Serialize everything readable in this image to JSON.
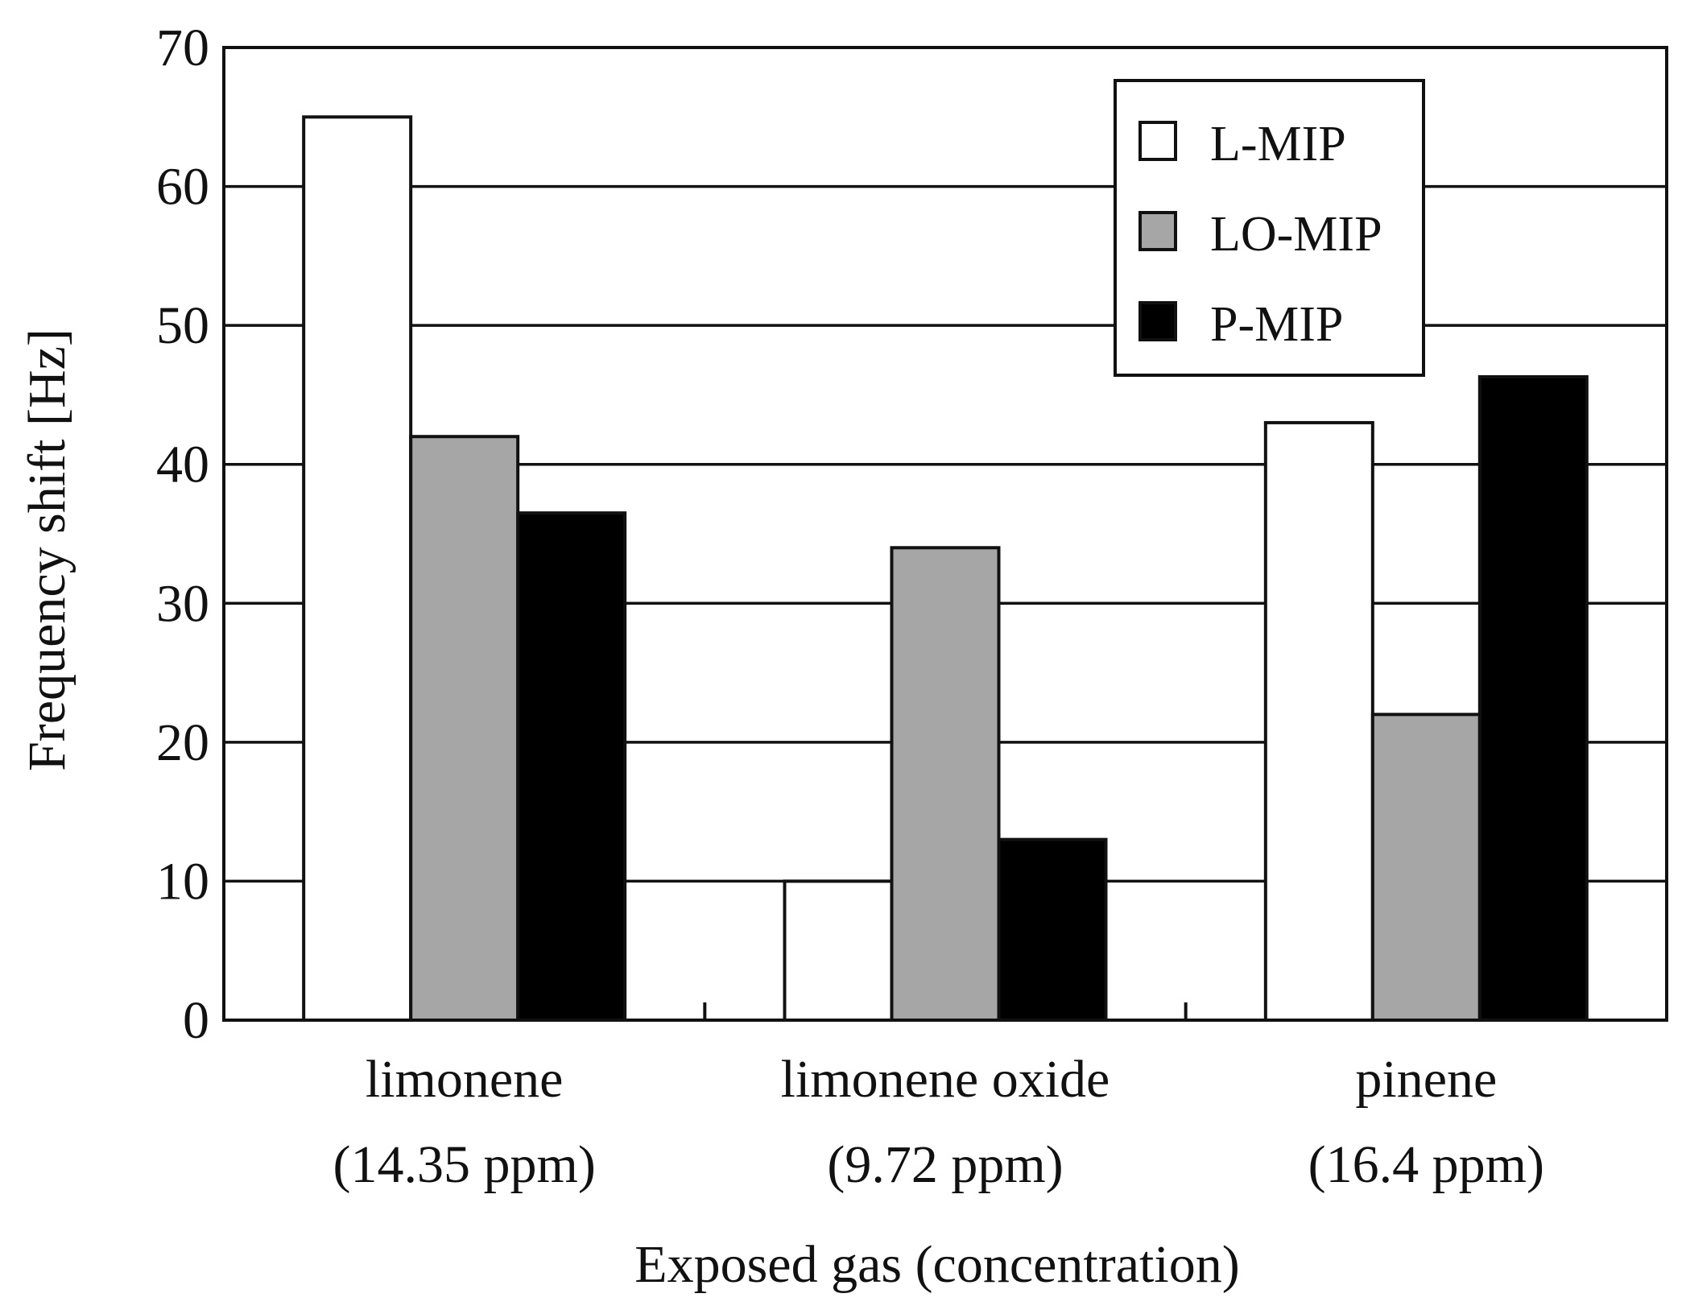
{
  "chart_data": {
    "type": "bar",
    "xlabel": "Exposed gas (concentration)",
    "ylabel": "Frequency shift [Hz]",
    "ylim": [
      0,
      70
    ],
    "yticks": [
      0,
      10,
      20,
      30,
      40,
      50,
      60,
      70
    ],
    "grid": "horizontal",
    "legend_position": "top-right",
    "categories": [
      {
        "line1": "limonene",
        "line2": "(14.35 ppm)"
      },
      {
        "line1": "limonene oxide",
        "line2": "(9.72 ppm)"
      },
      {
        "line1": "pinene",
        "line2": "(16.4 ppm)"
      }
    ],
    "series": [
      {
        "name": "L-MIP",
        "color": "#ffffff",
        "values": [
          65,
          10,
          43
        ]
      },
      {
        "name": "LO-MIP",
        "color": "#a6a6a6",
        "values": [
          42,
          34,
          22
        ]
      },
      {
        "name": "P-MIP",
        "color": "#000000",
        "values": [
          36.5,
          13,
          46.3
        ]
      }
    ]
  }
}
